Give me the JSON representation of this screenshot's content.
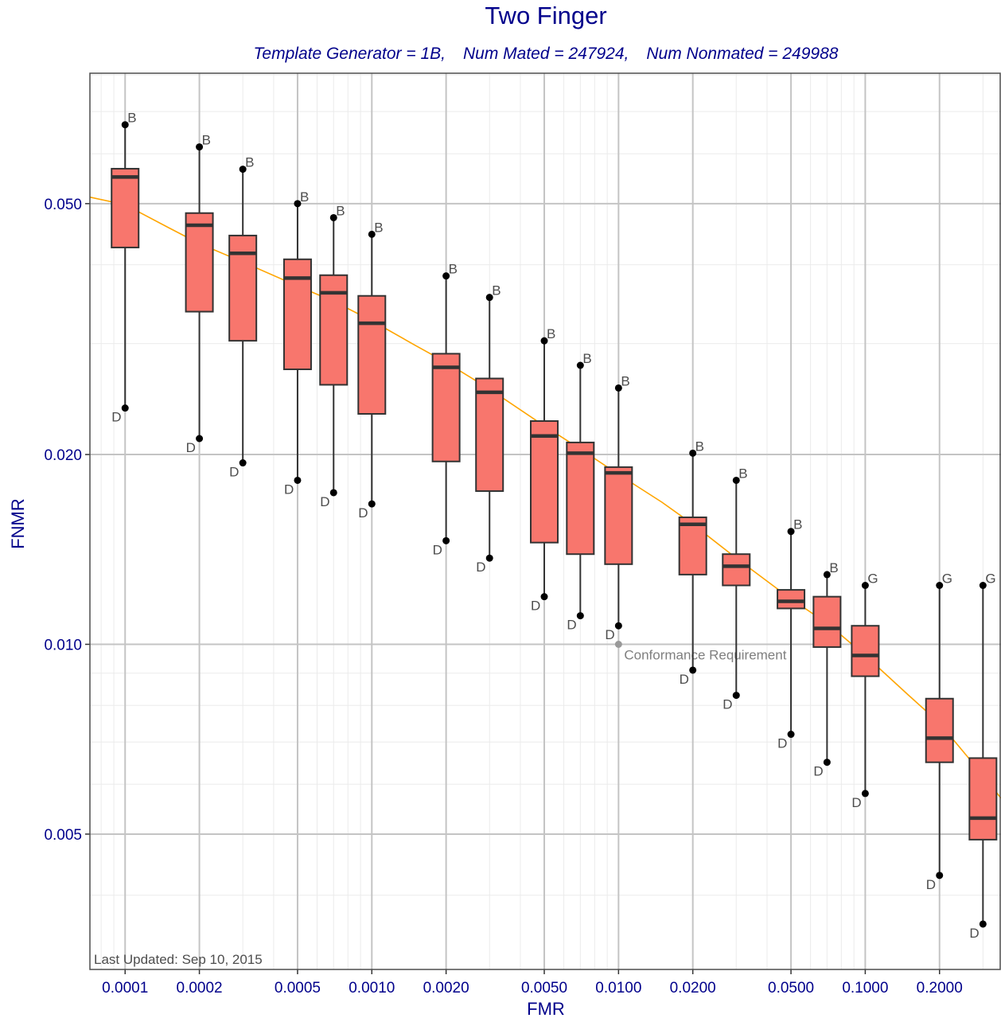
{
  "chart_data": {
    "type": "box",
    "title": "Two Finger",
    "subtitle_parts": [
      "Template Generator = 1B,",
      "Num Mated = 247924,",
      "Num Nonmated = 249988"
    ],
    "xlabel": "FMR",
    "ylabel": "FNMR",
    "x_scale": "log",
    "y_scale": "log",
    "xlim": [
      7.2e-05,
      0.355
    ],
    "ylim": [
      0.00305,
      0.0805
    ],
    "x_ticks": [
      {
        "value": 0.0001,
        "label": "0.0001"
      },
      {
        "value": 0.0002,
        "label": "0.0002"
      },
      {
        "value": 0.0005,
        "label": "0.0005"
      },
      {
        "value": 0.001,
        "label": "0.0010"
      },
      {
        "value": 0.002,
        "label": "0.0020"
      },
      {
        "value": 0.005,
        "label": "0.0050"
      },
      {
        "value": 0.01,
        "label": "0.0100"
      },
      {
        "value": 0.02,
        "label": "0.0200"
      },
      {
        "value": 0.05,
        "label": "0.0500"
      },
      {
        "value": 0.1,
        "label": "0.1000"
      },
      {
        "value": 0.2,
        "label": "0.2000"
      }
    ],
    "y_ticks": [
      {
        "value": 0.005,
        "label": "0.005"
      },
      {
        "value": 0.01,
        "label": "0.010"
      },
      {
        "value": 0.02,
        "label": "0.020"
      },
      {
        "value": 0.05,
        "label": "0.050"
      }
    ],
    "grid": true,
    "boxes": [
      {
        "fmr": 0.0001,
        "low": 0.0237,
        "q1": 0.0426,
        "median": 0.0551,
        "q3": 0.0568,
        "high": 0.0667,
        "high_label": "B",
        "low_label": "D"
      },
      {
        "fmr": 0.0002,
        "low": 0.0212,
        "q1": 0.0337,
        "median": 0.0462,
        "q3": 0.0483,
        "high": 0.0615,
        "high_label": "B",
        "low_label": "D"
      },
      {
        "fmr": 0.0003,
        "low": 0.0194,
        "q1": 0.0303,
        "median": 0.0417,
        "q3": 0.0445,
        "high": 0.0567,
        "high_label": "B",
        "low_label": "D"
      },
      {
        "fmr": 0.0005,
        "low": 0.0182,
        "q1": 0.0273,
        "median": 0.0381,
        "q3": 0.0408,
        "high": 0.05,
        "high_label": "B",
        "low_label": "D"
      },
      {
        "fmr": 0.0007,
        "low": 0.0174,
        "q1": 0.0258,
        "median": 0.0361,
        "q3": 0.0385,
        "high": 0.0475,
        "high_label": "B",
        "low_label": "D"
      },
      {
        "fmr": 0.001,
        "low": 0.0167,
        "q1": 0.0232,
        "median": 0.0323,
        "q3": 0.0357,
        "high": 0.0447,
        "high_label": "B",
        "low_label": "D"
      },
      {
        "fmr": 0.002,
        "low": 0.0146,
        "q1": 0.0195,
        "median": 0.0275,
        "q3": 0.0289,
        "high": 0.0384,
        "high_label": "B",
        "low_label": "D"
      },
      {
        "fmr": 0.003,
        "low": 0.0137,
        "q1": 0.0175,
        "median": 0.0251,
        "q3": 0.0264,
        "high": 0.0355,
        "high_label": "B",
        "low_label": "D"
      },
      {
        "fmr": 0.005,
        "low": 0.0119,
        "q1": 0.0145,
        "median": 0.0214,
        "q3": 0.0226,
        "high": 0.0303,
        "high_label": "B",
        "low_label": "D"
      },
      {
        "fmr": 0.007,
        "low": 0.0111,
        "q1": 0.0139,
        "median": 0.0201,
        "q3": 0.0209,
        "high": 0.0277,
        "high_label": "B",
        "low_label": "D"
      },
      {
        "fmr": 0.01,
        "low": 0.0107,
        "q1": 0.0134,
        "median": 0.0187,
        "q3": 0.0191,
        "high": 0.0255,
        "high_label": "B",
        "low_label": "D"
      },
      {
        "fmr": 0.02,
        "low": 0.0091,
        "q1": 0.0129,
        "median": 0.0155,
        "q3": 0.0159,
        "high": 0.0201,
        "high_label": "B",
        "low_label": "D"
      },
      {
        "fmr": 0.03,
        "low": 0.0083,
        "q1": 0.0124,
        "median": 0.0133,
        "q3": 0.0139,
        "high": 0.0182,
        "high_label": "B",
        "low_label": "D"
      },
      {
        "fmr": 0.05,
        "low": 0.0072,
        "q1": 0.0114,
        "median": 0.0117,
        "q3": 0.0122,
        "high": 0.0151,
        "high_label": "B",
        "low_label": "D"
      },
      {
        "fmr": 0.07,
        "low": 0.0065,
        "q1": 0.0099,
        "median": 0.0106,
        "q3": 0.0119,
        "high": 0.0129,
        "high_label": "B",
        "low_label": "D"
      },
      {
        "fmr": 0.1,
        "low": 0.0058,
        "q1": 0.0089,
        "median": 0.0096,
        "q3": 0.0107,
        "high": 0.0124,
        "high_label": "G",
        "low_label": "D"
      },
      {
        "fmr": 0.2,
        "low": 0.0043,
        "q1": 0.0065,
        "median": 0.0071,
        "q3": 0.0082,
        "high": 0.0124,
        "high_label": "G",
        "low_label": "D"
      },
      {
        "fmr": 0.3,
        "low": 0.0036,
        "q1": 0.0049,
        "median": 0.0053,
        "q3": 0.0066,
        "high": 0.0124,
        "high_label": "G",
        "low_label": "D"
      }
    ],
    "curve": {
      "color": "#ffa500",
      "points": [
        [
          7.2e-05,
          0.0512
        ],
        [
          0.0001,
          0.0498
        ],
        [
          0.00015,
          0.0458
        ],
        [
          0.0002,
          0.0432
        ],
        [
          0.0003,
          0.0404
        ],
        [
          0.0005,
          0.037
        ],
        [
          0.0007,
          0.035
        ],
        [
          0.001,
          0.0326
        ],
        [
          0.0015,
          0.0298
        ],
        [
          0.002,
          0.028
        ],
        [
          0.003,
          0.0254
        ],
        [
          0.005,
          0.0222
        ],
        [
          0.007,
          0.0204
        ],
        [
          0.01,
          0.0186
        ],
        [
          0.015,
          0.0168
        ],
        [
          0.02,
          0.0155
        ],
        [
          0.03,
          0.0137
        ],
        [
          0.05,
          0.0118
        ],
        [
          0.07,
          0.0108
        ],
        [
          0.1,
          0.0096
        ],
        [
          0.15,
          0.0083
        ],
        [
          0.2,
          0.0075
        ],
        [
          0.3,
          0.0062
        ],
        [
          0.355,
          0.0057
        ]
      ]
    },
    "conformance": {
      "fmr": 0.01,
      "fnmr": 0.01,
      "label": "Conformance Requirement",
      "color": "#999999"
    },
    "box_fill": "#f8766d",
    "annotation": "Last Updated: Sep 10, 2015"
  }
}
